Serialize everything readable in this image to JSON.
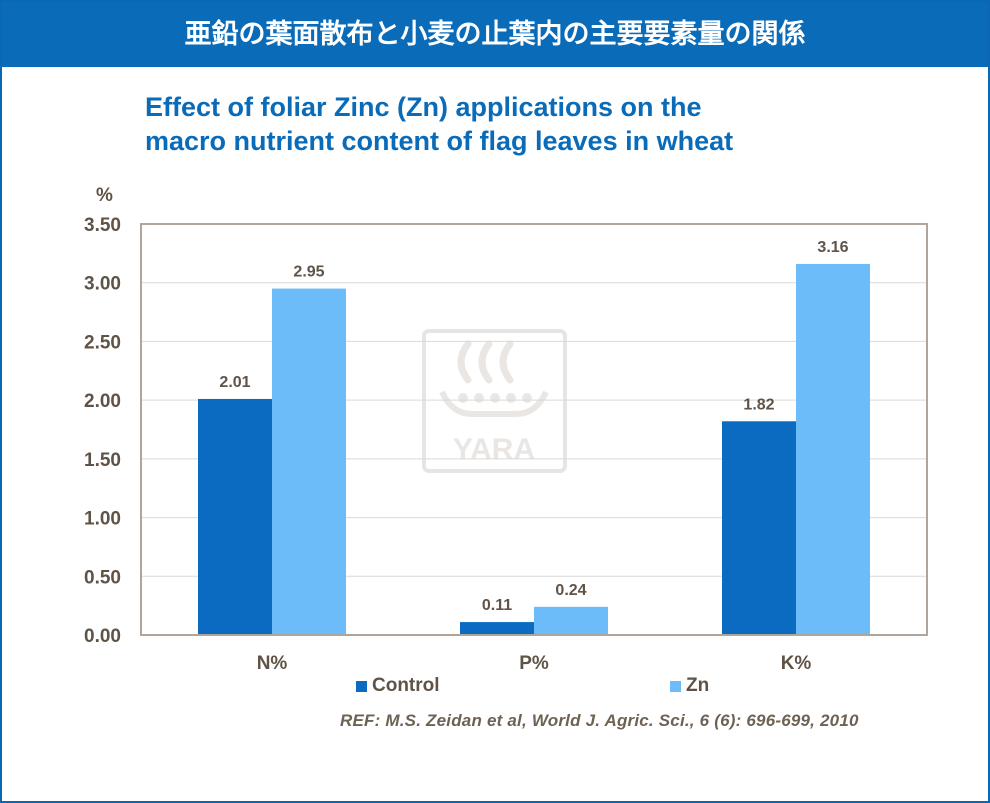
{
  "banner": {
    "title": "亜鉛の葉面散布と小麦の止葉内の主要要素量の関係"
  },
  "watermark": {
    "text": "YARA",
    "icon": "yara-viking-ship-logo"
  },
  "reference": "REF: M.S. Zeidan et al, World J. Agric. Sci., 6 (6): 696-699, 2010",
  "colors": {
    "control": "#0a6bc1",
    "zn": "#6dbcfa",
    "banner": "#0a6bb8",
    "axis": "#b0a59a"
  },
  "chart_data": {
    "type": "bar",
    "title_lines": [
      "Effect of foliar Zinc (Zn) applications on the",
      "macro nutrient content of flag leaves in wheat"
    ],
    "ylabel": "%",
    "ylim": [
      0,
      3.5
    ],
    "yticks": [
      "0.00",
      "0.50",
      "1.00",
      "1.50",
      "2.00",
      "2.50",
      "3.00",
      "3.50"
    ],
    "categories": [
      "N%",
      "P%",
      "K%"
    ],
    "series": [
      {
        "name": "Control",
        "values": [
          2.01,
          0.11,
          1.82
        ],
        "labels": [
          "2.01",
          "0.11",
          "1.82"
        ]
      },
      {
        "name": "Zn",
        "values": [
          2.95,
          0.24,
          3.16
        ],
        "labels": [
          "2.95",
          "0.24",
          "3.16"
        ]
      }
    ],
    "grid": true,
    "legend": "bottom-center"
  }
}
